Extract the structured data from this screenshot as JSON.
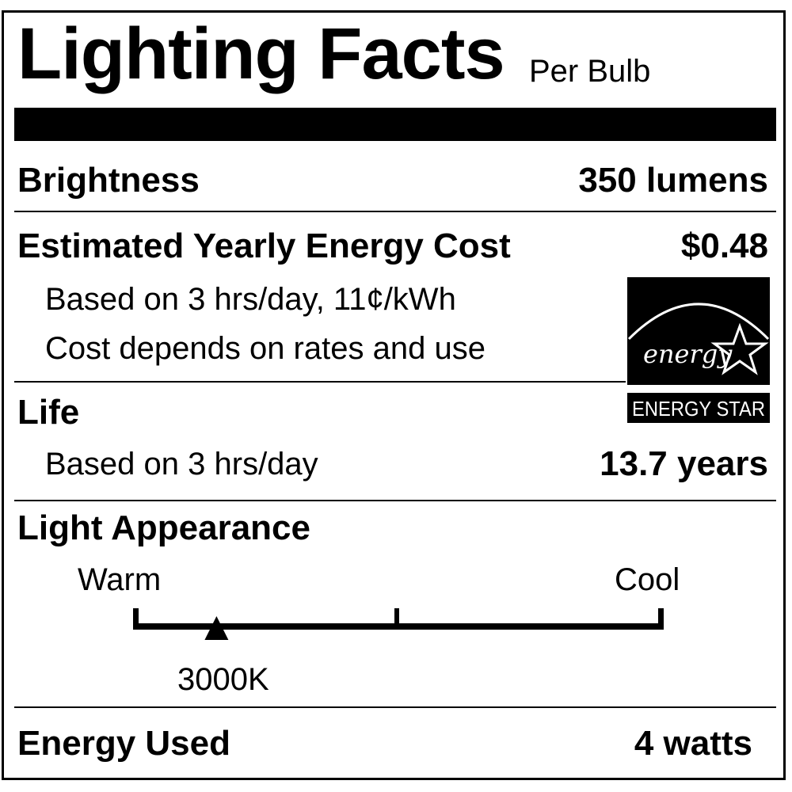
{
  "label": {
    "title": "Lighting Facts",
    "subtitle": "Per Bulb",
    "brightness": {
      "label": "Brightness",
      "value": "350 lumens"
    },
    "energy_cost": {
      "label": "Estimated Yearly Energy Cost",
      "value": "$0.48",
      "note1": "Based on 3 hrs/day, 11¢/kWh",
      "note2": "Cost depends on rates and use"
    },
    "life": {
      "label": "Life",
      "note": "Based on 3 hrs/day",
      "value": "13.7 years"
    },
    "light_appearance": {
      "label": "Light Appearance",
      "warm_label": "Warm",
      "cool_label": "Cool",
      "value": "3000K",
      "scale_min_k": 2700,
      "scale_max_k": 6500
    },
    "energy_used": {
      "label": "Energy Used",
      "value": "4 watts"
    },
    "energy_star": {
      "logo_script": "energy",
      "logo_text": "ENERGY STAR"
    }
  }
}
